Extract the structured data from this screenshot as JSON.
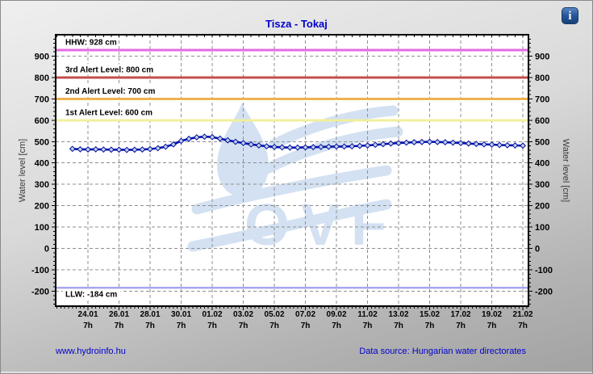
{
  "header": {
    "title": "Tisza - Tokaj",
    "info_icon_glyph": "i"
  },
  "footer": {
    "site_link": "www.hydroinfo.hu",
    "data_source": "Data source: Hungarian water directorates"
  },
  "colors": {
    "title_text": "#0000cd",
    "footer_text": "#0000cd",
    "grid": "#8f8f8f",
    "axis_text": "#000000",
    "axis_title_text": "#3a3a3a",
    "plot_border": "#000000",
    "plot_background": "#ffffff",
    "watermark": "#d3e1f2"
  },
  "chart_data": {
    "type": "line",
    "title": "Tisza - Tokaj",
    "ylabel_left": "Water level [cm]",
    "ylabel_right": "Water level [cm]",
    "y_domain": [
      -270,
      1000
    ],
    "x_domain_days": [
      -2.08,
      28.36
    ],
    "y_ticks": [
      900,
      800,
      700,
      600,
      500,
      400,
      300,
      200,
      100,
      0,
      -100,
      -200
    ],
    "y_minor_step": 20,
    "x_minor_step_days": 0.25,
    "grid_on": true,
    "x_ticks": [
      {
        "d": 0,
        "date": "24.01",
        "hour": "7h"
      },
      {
        "d": 2,
        "date": "26.01",
        "hour": "7h"
      },
      {
        "d": 4,
        "date": "28.01",
        "hour": "7h"
      },
      {
        "d": 6,
        "date": "30.01",
        "hour": "7h"
      },
      {
        "d": 8,
        "date": "01.02",
        "hour": "7h"
      },
      {
        "d": 10,
        "date": "03.02",
        "hour": "7h"
      },
      {
        "d": 12,
        "date": "05.02",
        "hour": "7h"
      },
      {
        "d": 14,
        "date": "07.02",
        "hour": "7h"
      },
      {
        "d": 16,
        "date": "09.02",
        "hour": "7h"
      },
      {
        "d": 18,
        "date": "11.02",
        "hour": "7h"
      },
      {
        "d": 20,
        "date": "13.02",
        "hour": "7h"
      },
      {
        "d": 22,
        "date": "15.02",
        "hour": "7h"
      },
      {
        "d": 24,
        "date": "17.02",
        "hour": "7h"
      },
      {
        "d": 26,
        "date": "19.02",
        "hour": "7h"
      },
      {
        "d": 28,
        "date": "21.02",
        "hour": "7h"
      }
    ],
    "reference_lines": [
      {
        "id": "hhw",
        "label": "HHW: 928 cm",
        "value": 928,
        "color": "#e56be5",
        "width": 3,
        "label_position": "above"
      },
      {
        "id": "alert3",
        "label": "3rd Alert Level: 800 cm",
        "value": 800,
        "color": "#c44d4d",
        "width": 3,
        "label_position": "above"
      },
      {
        "id": "alert2",
        "label": "2nd Alert Level: 700 cm",
        "value": 700,
        "color": "#eeb24f",
        "width": 3,
        "label_position": "above"
      },
      {
        "id": "alert1",
        "label": "1st Alert Level: 600 cm",
        "value": 600,
        "color": "#f0f09c",
        "width": 3,
        "label_position": "above"
      },
      {
        "id": "llw",
        "label": "LLW: -184 cm",
        "value": -184,
        "color": "#a6a6f2",
        "width": 2.5,
        "label_position": "below"
      }
    ],
    "series": [
      {
        "name": "water-level",
        "line_color": "#0d0db8",
        "marker": "diamond",
        "marker_fill": "#bdd1ea",
        "marker_stroke": "#001099",
        "x_days": [
          -1,
          -0.5,
          0,
          0.5,
          1,
          1.5,
          2,
          2.5,
          3,
          3.5,
          4,
          4.5,
          5,
          5.5,
          6,
          6.5,
          7,
          7.5,
          8,
          8.5,
          9,
          9.5,
          10,
          10.5,
          11,
          11.5,
          12,
          12.5,
          13,
          13.5,
          14,
          14.5,
          15,
          15.5,
          16,
          16.5,
          17,
          17.5,
          18,
          18.5,
          19,
          19.5,
          20,
          20.5,
          21,
          21.5,
          22,
          22.5,
          23,
          23.5,
          24,
          24.5,
          25,
          25.5,
          26,
          26.5,
          27,
          27.5,
          28
        ],
        "values": [
          466,
          464,
          463,
          464,
          463,
          462,
          462,
          461,
          462,
          463,
          465,
          469,
          476,
          487,
          503,
          513,
          520,
          523,
          521,
          514,
          506,
          499,
          493,
          487,
          482,
          478,
          475,
          473,
          472,
          472,
          473,
          474,
          475,
          476,
          477,
          477,
          478,
          480,
          482,
          485,
          488,
          491,
          493,
          495,
          497,
          498,
          499,
          498,
          497,
          495,
          493,
          491,
          489,
          487,
          486,
          484,
          483,
          482,
          481
        ]
      }
    ],
    "watermark_text": "OVF"
  }
}
